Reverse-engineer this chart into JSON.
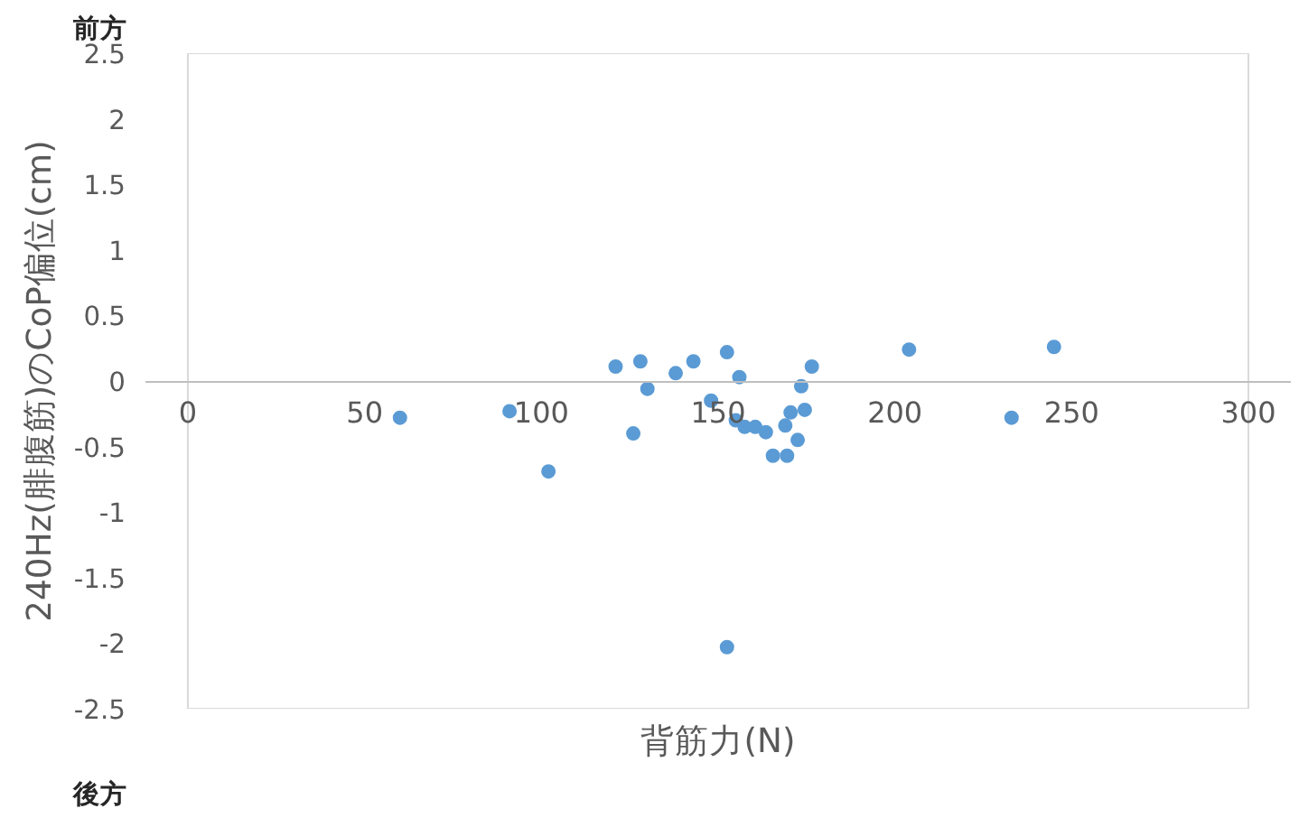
{
  "chart_data": {
    "type": "scatter",
    "xlabel": "背筋力(N)",
    "ylabel": "240Hz(腓腹筋)のCoP偏位(cm)",
    "annotations": [
      "前方",
      "後方"
    ],
    "series": [
      {
        "color": "#5b9bd5",
        "x": [
          60,
          91,
          102,
          121,
          126,
          128,
          130,
          138,
          143,
          148,
          152.5,
          152.5,
          155,
          156,
          157.5,
          160.5,
          163.5,
          165.5,
          169.5,
          169,
          170.5,
          172.5,
          173.5,
          174.5,
          176.5,
          204,
          233,
          245
        ],
        "values": [
          -0.28,
          -0.23,
          -0.69,
          0.11,
          -0.4,
          0.15,
          -0.06,
          0.06,
          0.15,
          -0.15,
          0.22,
          -2.03,
          -0.3,
          0.03,
          -0.35,
          -0.35,
          -0.39,
          -0.57,
          -0.57,
          -0.34,
          -0.24,
          -0.45,
          -0.04,
          -0.22,
          0.11,
          0.24,
          -0.28,
          0.26
        ]
      }
    ],
    "marker": "circle",
    "xlim": [
      0,
      300
    ],
    "ylim": [
      -2.5,
      2.5
    ],
    "xticks": [
      0,
      50,
      100,
      150,
      200,
      250,
      300
    ],
    "yticks": [
      {
        "value": -2.5,
        "label": "-2.5"
      },
      {
        "value": -2,
        "label": "-2"
      },
      {
        "value": -1.5,
        "label": "-1.5"
      },
      {
        "value": -1,
        "label": "-1"
      },
      {
        "value": -0.5,
        "label": "-0.5"
      },
      {
        "value": 0,
        "label": "0"
      },
      {
        "value": 0.5,
        "label": "0.5"
      },
      {
        "value": 1,
        "label": "1"
      },
      {
        "value": 1.5,
        "label": "1.5"
      },
      {
        "value": 2,
        "label": "2"
      },
      {
        "value": 2.5,
        "label": "2.5"
      }
    ]
  }
}
